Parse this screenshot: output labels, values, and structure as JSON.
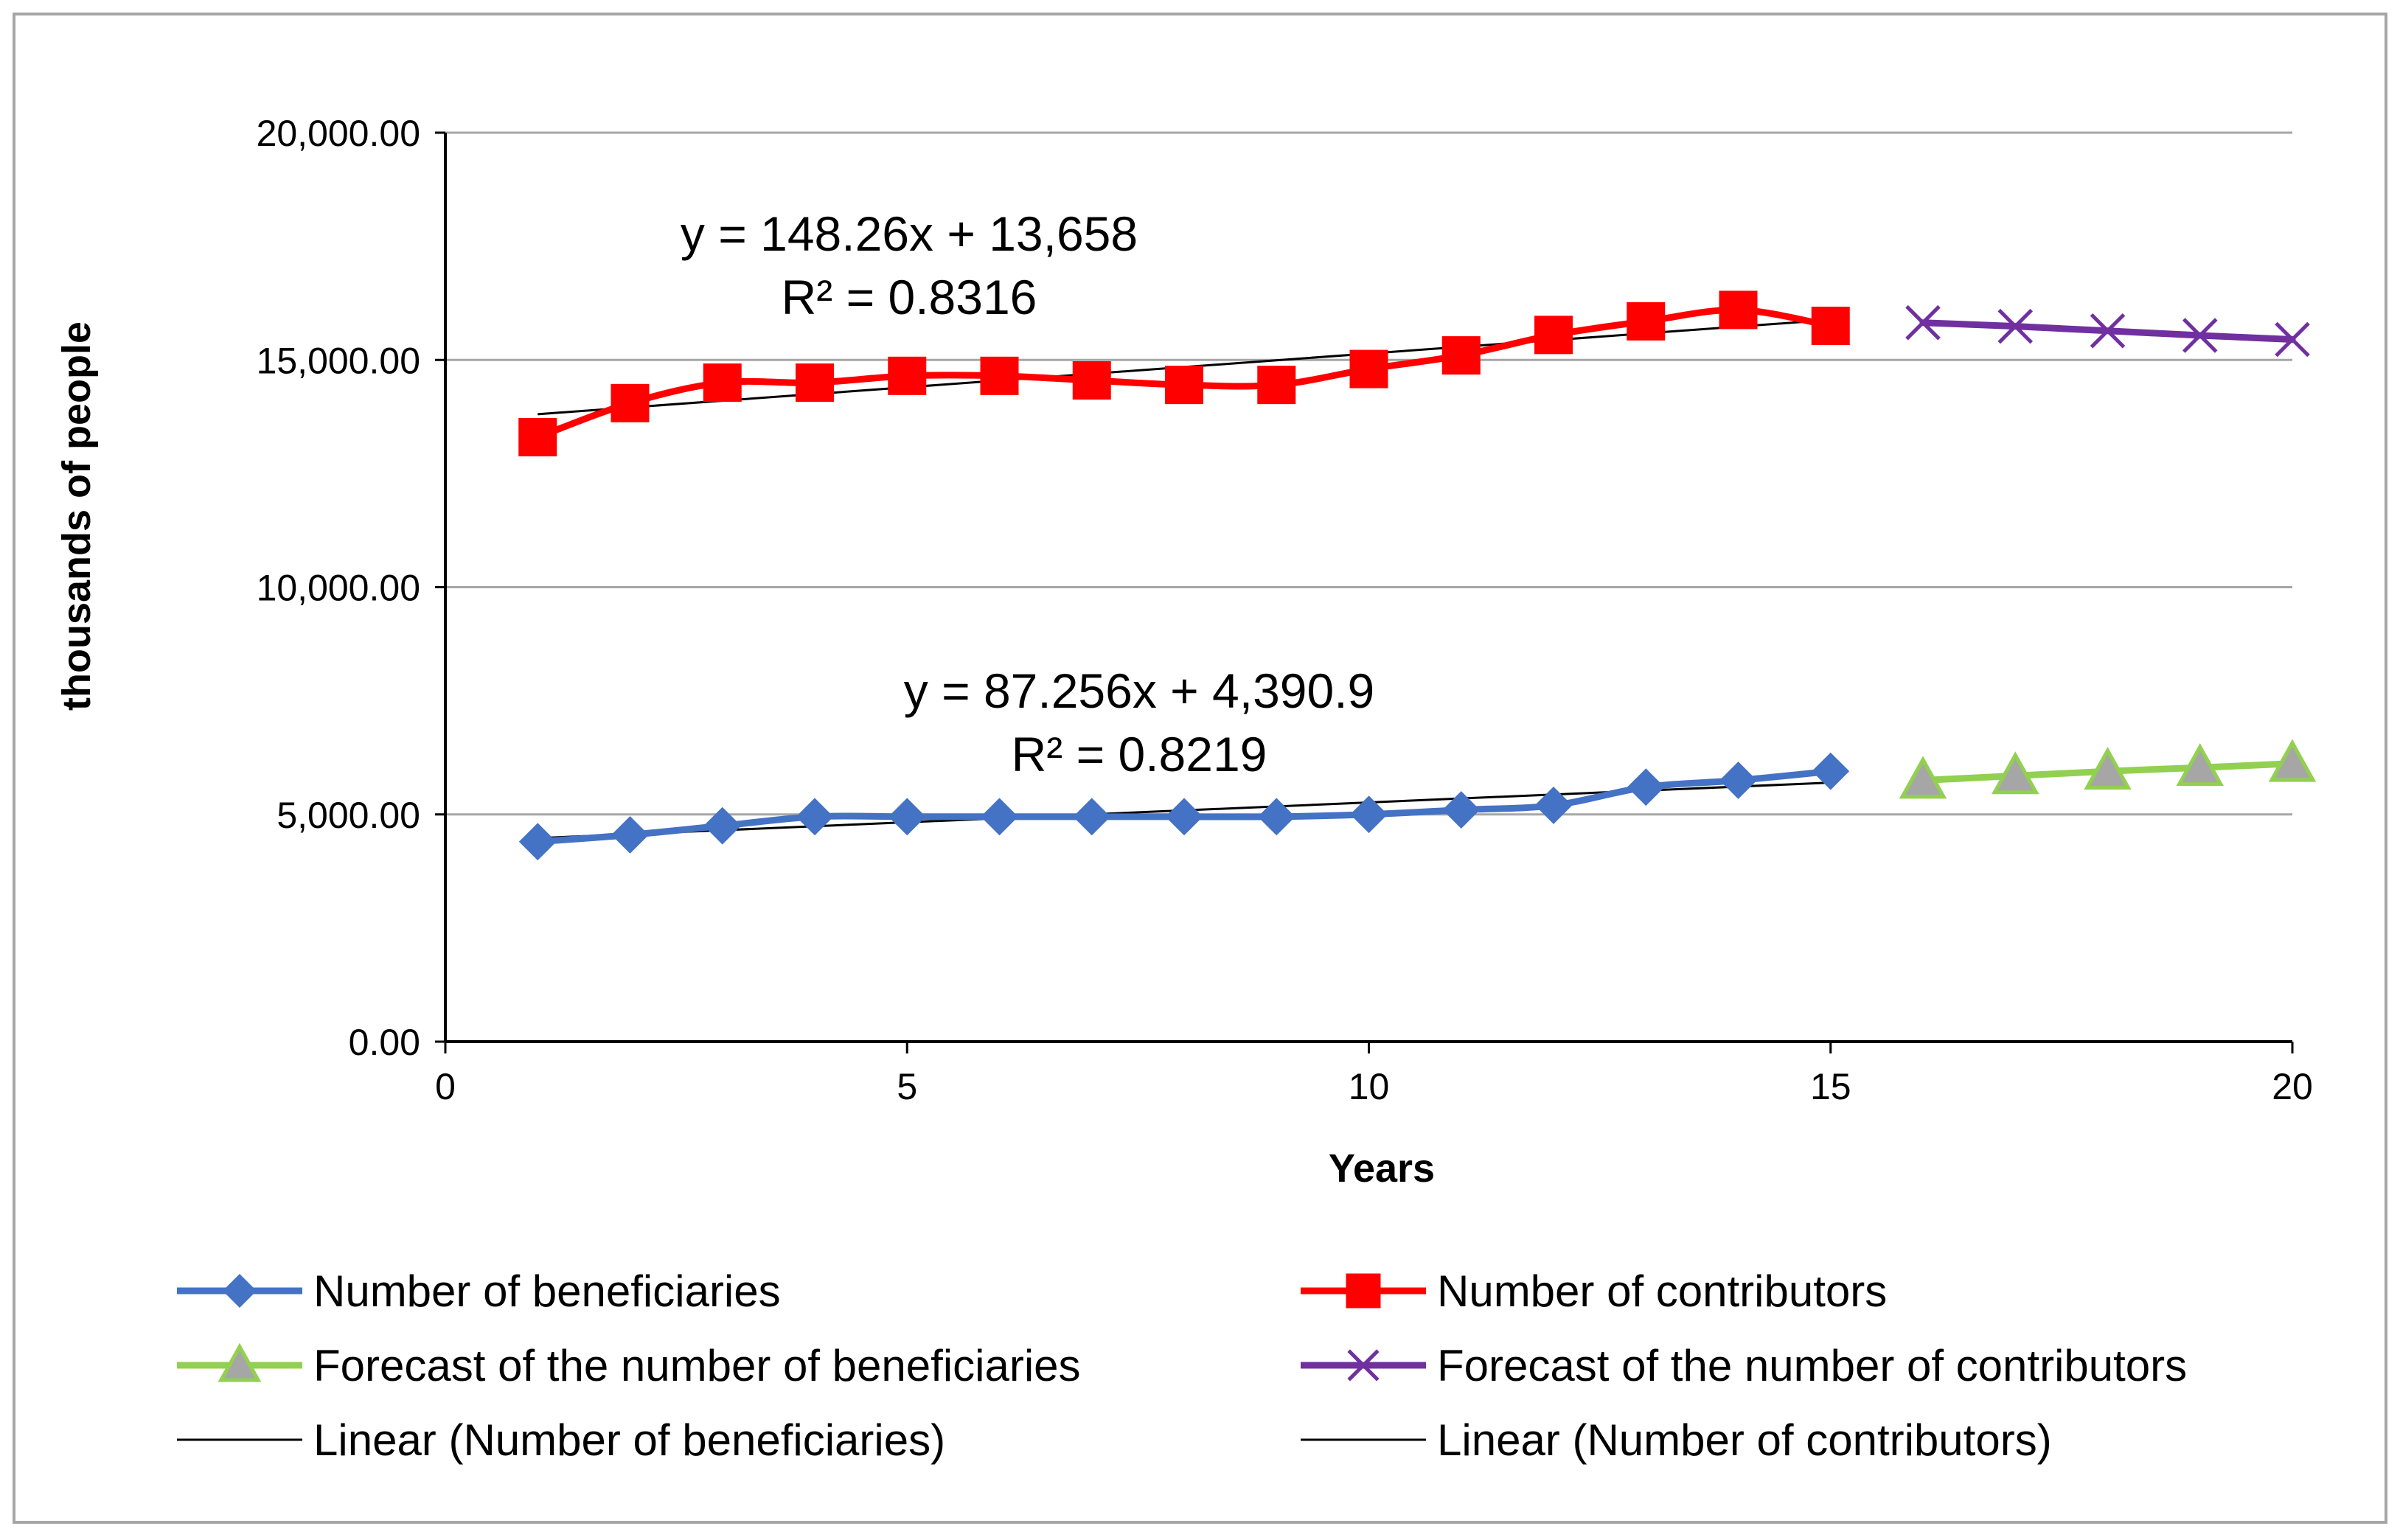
{
  "chart_data": {
    "type": "line",
    "title": "",
    "xlabel": "Years",
    "ylabel": "thousands of people",
    "xlim": [
      0,
      20
    ],
    "ylim": [
      0,
      20000
    ],
    "x_ticks": [
      0,
      5,
      10,
      15,
      20
    ],
    "x_tick_labels": [
      "0",
      "5",
      "10",
      "15",
      "20"
    ],
    "y_ticks": [
      0,
      5000,
      10000,
      15000,
      20000
    ],
    "y_tick_labels": [
      "0.00",
      "5,000.00",
      "10,000.00",
      "15,000.00",
      "20,000.00"
    ],
    "grid": "horizontal",
    "legend_position": "bottom",
    "series": [
      {
        "key": "beneficiaries",
        "name": "Number of beneficiaries",
        "color": "#4472C4",
        "marker": "diamond",
        "x": [
          1,
          2,
          3,
          4,
          5,
          6,
          7,
          8,
          9,
          10,
          11,
          12,
          13,
          14,
          15
        ],
        "values": [
          4400,
          4550,
          4750,
          4950,
          4950,
          4950,
          4950,
          4950,
          4950,
          5000,
          5100,
          5200,
          5600,
          5750,
          5950
        ]
      },
      {
        "key": "contributors",
        "name": "Number of contributors",
        "color": "#FF0000",
        "marker": "square",
        "x": [
          1,
          2,
          3,
          4,
          5,
          6,
          7,
          8,
          9,
          10,
          11,
          12,
          13,
          14,
          15
        ],
        "values": [
          13300,
          14050,
          14500,
          14500,
          14650,
          14650,
          14550,
          14450,
          14450,
          14800,
          15100,
          15550,
          15850,
          16100,
          15750
        ]
      },
      {
        "key": "forecast_beneficiaries",
        "name": "Forecast of the number of beneficiaries",
        "color": "#92D050",
        "marker_fill": "#A6A6A6",
        "marker": "triangle",
        "x": [
          16,
          17,
          18,
          19,
          20
        ],
        "values": [
          5750,
          5850,
          5950,
          6030,
          6120
        ]
      },
      {
        "key": "forecast_contributors",
        "name": "Forecast of the number of contributors",
        "color": "#7030A0",
        "marker": "x",
        "x": [
          16,
          17,
          18,
          19,
          20
        ],
        "values": [
          15820,
          15740,
          15640,
          15540,
          15450
        ]
      }
    ],
    "trendlines": [
      {
        "key": "trend_beneficiaries",
        "name": "Linear (Number of beneficiaries)",
        "color": "#000000",
        "slope": 87.256,
        "intercept": 4390.9,
        "x_range": [
          1,
          15
        ],
        "equation": "y = 87.256x + 4,390.9",
        "r2": "R² = 0.8219"
      },
      {
        "key": "trend_contributors",
        "name": "Linear (Number of contributors)",
        "color": "#000000",
        "slope": 148.26,
        "intercept": 13658,
        "x_range": [
          1,
          15
        ],
        "equation": "y = 148.26x + 13,658",
        "r2": "R² = 0.8316"
      }
    ],
    "legend": [
      {
        "label": "Number of beneficiaries",
        "series": "beneficiaries"
      },
      {
        "label": "Number of contributors",
        "series": "contributors"
      },
      {
        "label": "Forecast of the number of beneficiaries",
        "series": "forecast_beneficiaries"
      },
      {
        "label": "Forecast of the number of contributors",
        "series": "forecast_contributors"
      },
      {
        "label": "Linear (Number of beneficiaries)",
        "series": "trend_beneficiaries"
      },
      {
        "label": "Linear (Number of contributors)",
        "series": "trend_contributors"
      }
    ]
  }
}
